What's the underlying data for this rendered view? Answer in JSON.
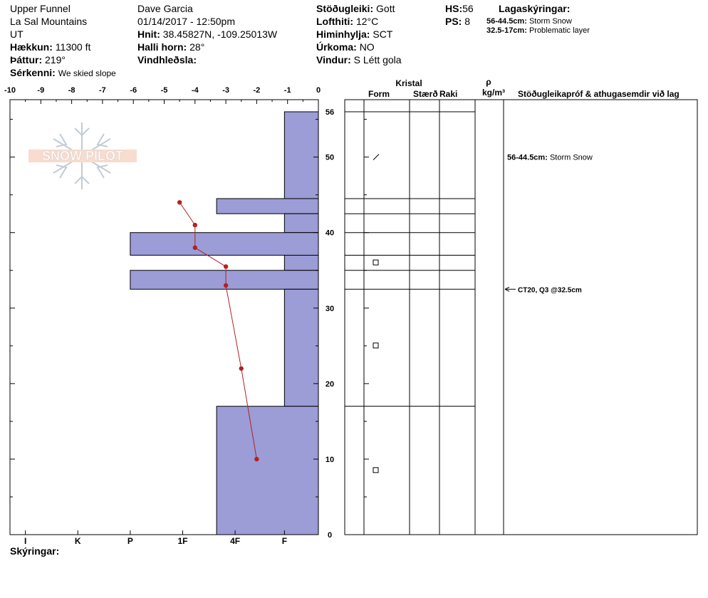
{
  "header": {
    "location_name": "Upper Funnel",
    "range": "La Sal Mountains",
    "state": "UT",
    "elevation_label": "Hækkun:",
    "elevation": "11300 ft",
    "aspect_label": "Þáttur:",
    "aspect": "219°",
    "features_label": "Sérkenni:",
    "features": "We skied slope",
    "observer": "Dave Garcia",
    "datetime": "01/14/2017 - 12:50pm",
    "coords_label": "Hnit:",
    "coords": "38.45827N, -109.25013W",
    "slope_label": "Halli horn:",
    "slope": "28°",
    "wind_loading_label": "Vindhleðsla:",
    "stability_label": "Stöðugleiki:",
    "stability": "Gott",
    "air_temp_label": "Lofthiti:",
    "air_temp": "12°C",
    "sky_label": "Himinhylja:",
    "sky": "SCT",
    "precip_label": "Úrkoma:",
    "precip": "NO",
    "wind_label": "Vindur:",
    "wind": "S Létt gola",
    "hs_label": "HS:",
    "hs": "56",
    "ps_label": "PS:",
    "ps": "8",
    "layer_notes_label": "Lagaskýringar:",
    "layer_notes": [
      {
        "range": "56-44.5cm:",
        "text": "Storm Snow"
      },
      {
        "range": "32.5-17cm:",
        "text": "Problematic layer"
      }
    ]
  },
  "logo_text": "SNOW PILOT",
  "footer": {
    "notes_label": "Skýringar:"
  },
  "columns": {
    "crystal": "Kristal",
    "form": "Form",
    "size": "Stærð",
    "moisture": "Raki",
    "rho": "ρ",
    "density_unit": "kg/m³",
    "tests": "Stöðugleikapróf & athugasemdir við lag"
  },
  "colors": {
    "hardness_fill": "#9c9cd6",
    "temp_line": "#b22222",
    "grid": "#000000"
  },
  "chart_data": {
    "type": "snow_profile",
    "temperature_axis": {
      "ticks": [
        -10,
        -9,
        -8,
        -7,
        -6,
        -5,
        -4,
        -3,
        -2,
        -1,
        0
      ],
      "labels": [
        "-10",
        "-9",
        "-8",
        "-7",
        "-6",
        "-5",
        "-4",
        "-3",
        "-2",
        "-1",
        "0"
      ],
      "range": [
        -10,
        0
      ]
    },
    "height_axis": {
      "range": [
        0,
        56
      ],
      "ticks": [
        0,
        10,
        20,
        30,
        40,
        50,
        56
      ]
    },
    "hardness_axis": {
      "labels": [
        "I",
        "K",
        "P",
        "1F",
        "4F",
        "F"
      ],
      "positions": [
        -9.5,
        -7.8,
        -6.1,
        -4.4,
        -2.7,
        -1.1
      ]
    },
    "hardness_layers": [
      {
        "top": 56,
        "bottom": 44.5,
        "hardness_temp": -1.1
      },
      {
        "top": 44.5,
        "bottom": 42.5,
        "hardness_temp": -3.3
      },
      {
        "top": 42.5,
        "bottom": 40,
        "hardness_temp": -1.1
      },
      {
        "top": 40,
        "bottom": 37,
        "hardness_temp": -6.1
      },
      {
        "top": 37,
        "bottom": 35,
        "hardness_temp": -1.1
      },
      {
        "top": 35,
        "bottom": 32.5,
        "hardness_temp": -6.1
      },
      {
        "top": 32.5,
        "bottom": 17,
        "hardness_temp": -1.1
      },
      {
        "top": 17,
        "bottom": 0,
        "hardness_temp": -3.3
      }
    ],
    "temperature_profile": [
      {
        "height": 44,
        "temp": -4.5
      },
      {
        "height": 41,
        "temp": -4.0
      },
      {
        "height": 38,
        "temp": -4.0
      },
      {
        "height": 35.5,
        "temp": -3.0
      },
      {
        "height": 33,
        "temp": -3.0
      },
      {
        "height": 22,
        "temp": -2.5
      },
      {
        "height": 10,
        "temp": -2.0
      }
    ],
    "crystal_marks": [
      {
        "height": 50,
        "symbol": "slash"
      },
      {
        "height": 36,
        "symbol": "square"
      },
      {
        "height": 25,
        "symbol": "square"
      },
      {
        "height": 8.5,
        "symbol": "square"
      }
    ],
    "layer_comments": [
      {
        "height": 50,
        "range": "56-44.5cm:",
        "text": "Storm Snow"
      }
    ],
    "stability_tests": [
      {
        "height": 32.5,
        "text": "CT20, Q3 @32.5cm"
      }
    ]
  }
}
